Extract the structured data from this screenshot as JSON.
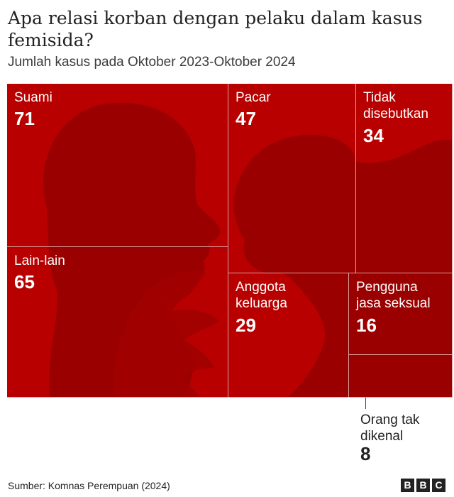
{
  "title": "Apa relasi korban dengan pelaku dalam kasus femisida?",
  "subtitle": "Jumlah kasus pada Oktober 2023-Oktober 2024",
  "source": "Sumber: Komnas Perempuan (2024)",
  "brand": [
    "B",
    "B",
    "C"
  ],
  "colors": {
    "tile": "#b80000",
    "silhouette": "#9a0000",
    "dark_tile": "#9b0000",
    "border": "#d4d4d4"
  },
  "chart_data": {
    "type": "treemap",
    "categories": [
      "Suami",
      "Lain-lain",
      "Pacar",
      "Tidak disebutkan",
      "Anggota keluarga",
      "Pengguna jasa seksual",
      "Orang tak dikenal"
    ],
    "values": [
      71,
      65,
      47,
      34,
      29,
      16,
      8
    ],
    "labels": [
      {
        "name": "Suami",
        "value": "71"
      },
      {
        "name": "Lain-lain",
        "value": "65"
      },
      {
        "name": "Pacar",
        "value": "47"
      },
      {
        "name": "Tidak disebutkan",
        "value": "34"
      },
      {
        "name": "Anggota keluarga",
        "value": "29"
      },
      {
        "name": "Pengguna jasa seksual",
        "value": "16"
      },
      {
        "name": "Orang tak dikenal",
        "value": "8"
      }
    ]
  }
}
